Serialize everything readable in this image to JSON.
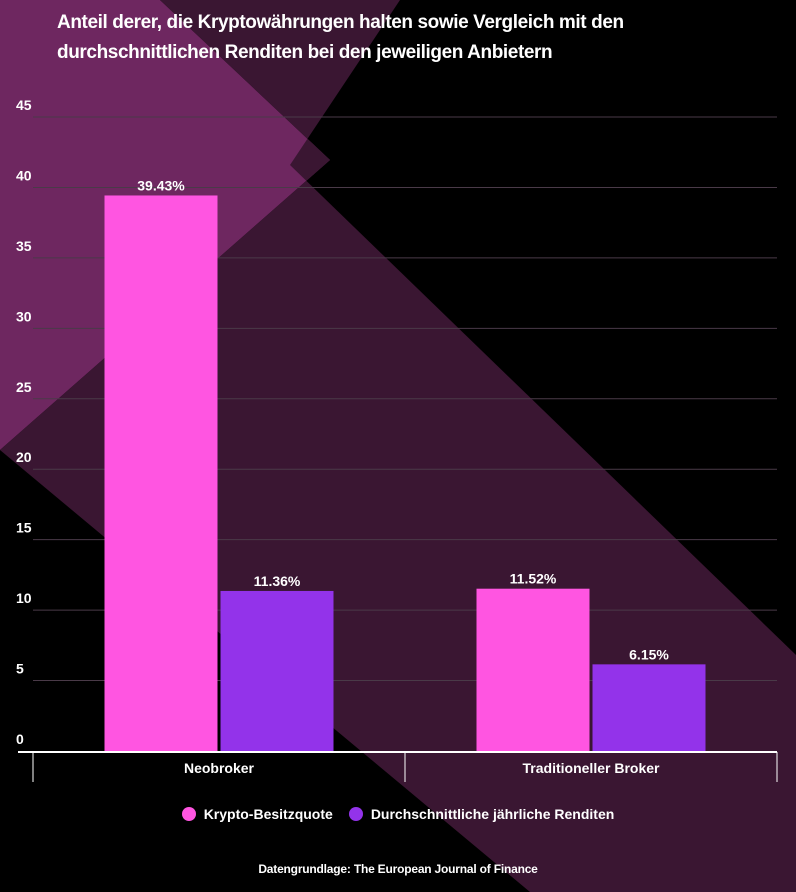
{
  "colors": {
    "background": "#000000",
    "stripe_light": "#6e2760",
    "stripe_dark": "#3a1632",
    "series_1": "#ff55e1",
    "series_2": "#9333ea",
    "gridline": "#4a3a48",
    "axis": "#ffffff"
  },
  "chart_data": {
    "type": "bar",
    "title": "Anteil derer, die Kryptowährungen halten sowie Vergleich mit den durchschnittlichen Renditen bei den jeweiligen Anbietern",
    "categories": [
      "Neobroker",
      "Traditioneller Broker"
    ],
    "series": [
      {
        "name": "Krypto-Besitzquote",
        "values": [
          39.43,
          11.52
        ],
        "labels": [
          "39.43%",
          "11.52%"
        ]
      },
      {
        "name": "Durchschnittliche jährliche Renditen",
        "values": [
          11.36,
          6.15
        ],
        "labels": [
          "11.36%",
          "6.15%"
        ]
      }
    ],
    "yticks": [
      0,
      5,
      10,
      15,
      20,
      25,
      30,
      35,
      40,
      45
    ],
    "ylim": [
      0,
      45
    ],
    "grid": true,
    "legend_position": "bottom",
    "source": "Datengrundlage: The European Journal of Finance"
  }
}
